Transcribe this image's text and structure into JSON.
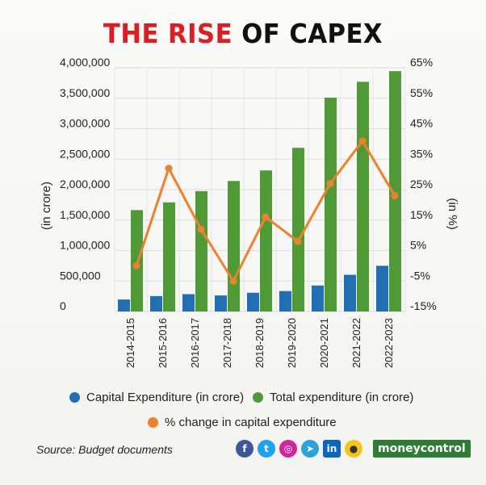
{
  "title": {
    "part1": "THE RISE",
    "part2": " OF CAPEX"
  },
  "chart_data": {
    "type": "bar+line",
    "categories": [
      "2014-2015",
      "2015-2016",
      "2016-2017",
      "2017-2018",
      "2018-2019",
      "2019-2020",
      "2020-2021",
      "2021-2022",
      "2022-2023"
    ],
    "series": [
      {
        "name": "Capital Expenditure (in crore)",
        "type": "bar",
        "axis": "left",
        "color": "#1f6fb5",
        "values": [
          196681,
          253022,
          284610,
          263140,
          307714,
          335726,
          426317,
          602000,
          750246
        ]
      },
      {
        "name": "Total expenditure (in crore)",
        "type": "bar",
        "axis": "left",
        "color": "#4e9a34",
        "values": [
          1663673,
          1790783,
          1975194,
          2141973,
          2315113,
          2686330,
          3509836,
          3770000,
          3944909
        ]
      },
      {
        "name": "% change in capital expenditure",
        "type": "line",
        "axis": "right",
        "color": "#f0802a",
        "values": [
          0,
          32,
          12,
          -5,
          16,
          8,
          27,
          41,
          23
        ]
      }
    ],
    "ylabel_left": "(in crore)",
    "ylabel_right": "(in %)",
    "ylim_left": [
      0,
      4000000
    ],
    "yticks_left": [
      "0",
      "500,000",
      "1,000,000",
      "1,500,000",
      "2,000,000",
      "2,500,000",
      "3,000,000",
      "3,500,000",
      "4,000,000"
    ],
    "ylim_right": [
      -15,
      65
    ],
    "yticks_right": [
      "-15%",
      "-5%",
      "5%",
      "15%",
      "25%",
      "35%",
      "45%",
      "55%",
      "65%"
    ],
    "grid": true,
    "legend_position": "bottom"
  },
  "legend": {
    "capex": "Capital Expenditure (in crore)",
    "total": "Total expenditure (in crore)",
    "pct": "% change in capital expenditure"
  },
  "footer": {
    "source": "Source: Budget documents",
    "brand": "moneycontrol",
    "social_icons": [
      "facebook-icon",
      "twitter-icon",
      "instagram-icon",
      "telegram-icon",
      "linkedin-icon",
      "koo-icon"
    ]
  }
}
